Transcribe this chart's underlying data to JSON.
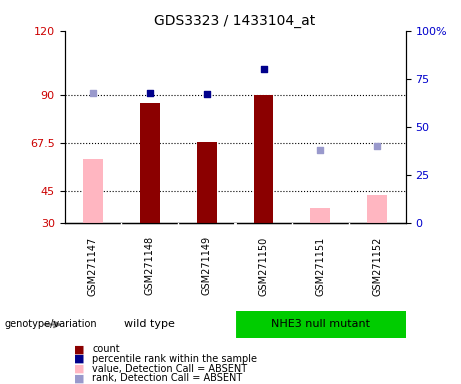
{
  "title": "GDS3323 / 1433104_at",
  "samples": [
    "GSM271147",
    "GSM271148",
    "GSM271149",
    "GSM271150",
    "GSM271151",
    "GSM271152"
  ],
  "count_values": [
    null,
    86,
    68,
    90,
    null,
    null
  ],
  "count_color": "#8B0000",
  "count_absent_values": [
    60,
    null,
    null,
    null,
    37,
    43
  ],
  "count_absent_color": "#FFB6C1",
  "rank_present_values": [
    null,
    67.5,
    67,
    80,
    null,
    null
  ],
  "rank_present_color": "#00008B",
  "rank_absent_values": [
    67.5,
    null,
    null,
    null,
    38,
    40
  ],
  "rank_absent_color": "#9999CC",
  "ylim_left": [
    30,
    120
  ],
  "ylim_right": [
    0,
    100
  ],
  "yticks_left": [
    30,
    45,
    67.5,
    90,
    120
  ],
  "yticks_right": [
    0,
    25,
    50,
    75,
    100
  ],
  "ytick_right_labels": [
    "0",
    "25",
    "50",
    "75",
    "100%"
  ],
  "ylabel_left_color": "#CC0000",
  "ylabel_right_color": "#0000CC",
  "hlines": [
    45,
    67.5,
    90
  ],
  "bar_width": 0.35,
  "rank_marker_size": 25,
  "group1_label": "wild type",
  "group2_label": "NHE3 null mutant",
  "group1_color": "#90EE90",
  "group2_color": "#00CC00",
  "legend_items": [
    {
      "color": "#8B0000",
      "label": "count"
    },
    {
      "color": "#00008B",
      "label": "percentile rank within the sample"
    },
    {
      "color": "#FFB6C1",
      "label": "value, Detection Call = ABSENT"
    },
    {
      "color": "#9999CC",
      "label": "rank, Detection Call = ABSENT"
    }
  ],
  "genotype_label": "genotype/variation"
}
